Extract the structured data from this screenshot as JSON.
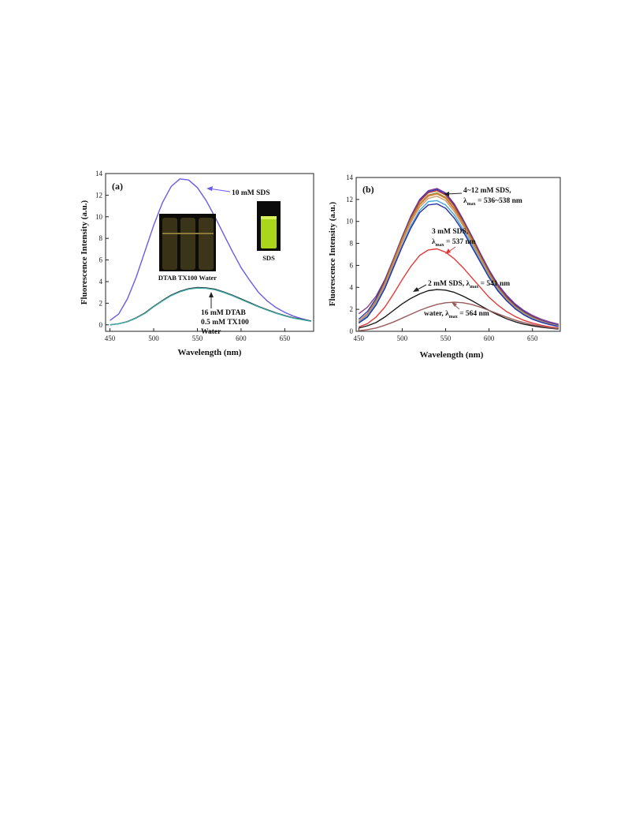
{
  "chart_data": [
    {
      "type": "line",
      "panel_label": "(a)",
      "xlabel": "Wavelength (nm)",
      "ylabel": "Fluorescence Intensity (a.u.)",
      "xlim": [
        445,
        683
      ],
      "ylim": [
        -0.6,
        14
      ],
      "xticks": [
        450,
        500,
        550,
        600,
        650
      ],
      "yticks": [
        0,
        2,
        4,
        6,
        8,
        10,
        12,
        14
      ],
      "series": [
        {
          "color": "#6a5ae8",
          "x": [
            450,
            460,
            470,
            480,
            490,
            500,
            510,
            520,
            530,
            540,
            550,
            560,
            570,
            580,
            590,
            600,
            610,
            620,
            630,
            640,
            650,
            660,
            670,
            680
          ],
          "y": [
            0.4,
            1.0,
            2.4,
            4.4,
            6.8,
            9.2,
            11.3,
            12.8,
            13.5,
            13.4,
            12.7,
            11.5,
            10.0,
            8.4,
            6.8,
            5.3,
            4.1,
            3.0,
            2.2,
            1.6,
            1.15,
            0.8,
            0.55,
            0.35
          ]
        },
        {
          "color": "#1f2a33",
          "x": [
            450,
            460,
            470,
            480,
            490,
            500,
            510,
            520,
            530,
            540,
            550,
            560,
            570,
            580,
            590,
            600,
            610,
            620,
            630,
            640,
            650,
            660,
            670,
            680
          ],
          "y": [
            0.0,
            0.1,
            0.3,
            0.65,
            1.1,
            1.7,
            2.25,
            2.75,
            3.1,
            3.35,
            3.45,
            3.42,
            3.3,
            3.05,
            2.75,
            2.4,
            2.05,
            1.7,
            1.4,
            1.1,
            0.85,
            0.65,
            0.5,
            0.35
          ]
        },
        {
          "color": "#3fa8a3",
          "x": [
            450,
            460,
            470,
            480,
            490,
            500,
            510,
            520,
            530,
            540,
            550,
            560,
            570,
            580,
            590,
            600,
            610,
            620,
            630,
            640,
            650,
            660,
            670,
            680
          ],
          "y": [
            0.0,
            0.1,
            0.28,
            0.62,
            1.06,
            1.66,
            2.2,
            2.7,
            3.05,
            3.3,
            3.4,
            3.37,
            3.25,
            3.0,
            2.7,
            2.35,
            2.0,
            1.66,
            1.36,
            1.07,
            0.82,
            0.62,
            0.47,
            0.33
          ]
        }
      ],
      "annotations": {
        "sds": "10 mM SDS",
        "dtab": "16 mM DTAB",
        "tx100": "0.5 mM TX100",
        "water": "Water",
        "inset_left_caption": "DTAB TX100 Water",
        "inset_right_caption": "SDS"
      }
    },
    {
      "type": "line",
      "panel_label": "(b)",
      "xlabel": "Wavelength (nm)",
      "ylabel": "Fluorescence Intensity (a.u.)",
      "xlim": [
        447,
        682
      ],
      "ylim": [
        0,
        14
      ],
      "xticks": [
        450,
        500,
        550,
        600,
        650
      ],
      "yticks": [
        0,
        2,
        4,
        6,
        8,
        10,
        12,
        14
      ],
      "series": [
        {
          "color": "#8a3b8e",
          "x": [
            450,
            460,
            470,
            480,
            490,
            500,
            510,
            520,
            530,
            540,
            550,
            560,
            570,
            580,
            590,
            600,
            610,
            620,
            630,
            640,
            650,
            660,
            670,
            680
          ],
          "y": [
            1.6,
            2.2,
            3.2,
            4.7,
            6.6,
            8.6,
            10.5,
            12.0,
            12.8,
            13.0,
            12.6,
            11.6,
            10.2,
            8.7,
            7.1,
            5.6,
            4.3,
            3.3,
            2.5,
            1.9,
            1.45,
            1.1,
            0.85,
            0.65
          ]
        },
        {
          "color": "#2b3dbf",
          "x": [
            450,
            460,
            470,
            480,
            490,
            500,
            510,
            520,
            530,
            540,
            550,
            560,
            570,
            580,
            590,
            600,
            610,
            620,
            630,
            640,
            650,
            660,
            670,
            680
          ],
          "y": [
            1.1,
            1.8,
            3.0,
            4.6,
            6.6,
            8.6,
            10.4,
            11.9,
            12.7,
            12.9,
            12.5,
            11.5,
            10.1,
            8.6,
            7.0,
            5.5,
            4.2,
            3.2,
            2.4,
            1.8,
            1.35,
            1.0,
            0.75,
            0.55
          ]
        },
        {
          "color": "#c8392f",
          "x": [
            450,
            460,
            470,
            480,
            490,
            500,
            510,
            520,
            530,
            540,
            550,
            560,
            570,
            580,
            590,
            600,
            610,
            620,
            630,
            640,
            650,
            660,
            670,
            680
          ],
          "y": [
            0.9,
            1.6,
            2.8,
            4.5,
            6.5,
            8.5,
            10.3,
            11.8,
            12.6,
            12.8,
            12.4,
            11.4,
            10.0,
            8.5,
            6.9,
            5.4,
            4.1,
            3.1,
            2.3,
            1.7,
            1.3,
            0.95,
            0.7,
            0.5
          ]
        },
        {
          "color": "#8f8f2a",
          "x": [
            450,
            460,
            470,
            480,
            490,
            500,
            510,
            520,
            530,
            540,
            550,
            560,
            570,
            580,
            590,
            600,
            610,
            620,
            630,
            640,
            650,
            660,
            670,
            680
          ],
          "y": [
            0.9,
            1.6,
            2.8,
            4.4,
            6.4,
            8.4,
            10.2,
            11.6,
            12.4,
            12.6,
            12.2,
            11.2,
            9.9,
            8.4,
            6.8,
            5.3,
            4.0,
            3.0,
            2.25,
            1.7,
            1.25,
            0.92,
            0.68,
            0.5
          ]
        },
        {
          "color": "#e07a33",
          "x": [
            450,
            460,
            470,
            480,
            490,
            500,
            510,
            520,
            530,
            540,
            550,
            560,
            570,
            580,
            590,
            600,
            610,
            620,
            630,
            640,
            650,
            660,
            670,
            680
          ],
          "y": [
            0.9,
            1.6,
            2.7,
            4.3,
            6.3,
            8.3,
            10.1,
            11.5,
            12.3,
            12.5,
            12.1,
            11.1,
            9.8,
            8.3,
            6.7,
            5.2,
            3.95,
            2.95,
            2.2,
            1.65,
            1.22,
            0.9,
            0.66,
            0.48
          ]
        },
        {
          "color": "#c99a6b",
          "x": [
            450,
            460,
            470,
            480,
            490,
            500,
            510,
            520,
            530,
            540,
            550,
            560,
            570,
            580,
            590,
            600,
            610,
            620,
            630,
            640,
            650,
            660,
            670,
            680
          ],
          "y": [
            0.85,
            1.5,
            2.6,
            4.2,
            6.1,
            8.1,
            9.9,
            11.3,
            12.1,
            12.3,
            11.9,
            10.9,
            9.6,
            8.1,
            6.6,
            5.1,
            3.9,
            2.9,
            2.15,
            1.6,
            1.2,
            0.88,
            0.65,
            0.47
          ]
        },
        {
          "color": "#40a6d8",
          "x": [
            450,
            460,
            470,
            480,
            490,
            500,
            510,
            520,
            530,
            540,
            550,
            560,
            570,
            580,
            590,
            600,
            610,
            620,
            630,
            640,
            650,
            660,
            670,
            680
          ],
          "y": [
            0.8,
            1.4,
            2.5,
            4.0,
            5.9,
            7.8,
            9.6,
            11.0,
            11.8,
            11.9,
            11.5,
            10.6,
            9.3,
            7.9,
            6.4,
            5.0,
            3.8,
            2.85,
            2.1,
            1.55,
            1.15,
            0.85,
            0.62,
            0.45
          ]
        },
        {
          "color": "#2a2fa8",
          "x": [
            450,
            460,
            470,
            480,
            490,
            500,
            510,
            520,
            530,
            540,
            550,
            560,
            570,
            580,
            590,
            600,
            610,
            620,
            630,
            640,
            650,
            660,
            670,
            680
          ],
          "y": [
            0.75,
            1.3,
            2.4,
            3.9,
            5.8,
            7.7,
            9.4,
            10.8,
            11.5,
            11.6,
            11.2,
            10.3,
            9.1,
            7.7,
            6.3,
            4.9,
            3.7,
            2.8,
            2.05,
            1.5,
            1.1,
            0.82,
            0.6,
            0.43
          ]
        },
        {
          "color": "#e23a3a",
          "x": [
            450,
            460,
            470,
            480,
            490,
            500,
            510,
            520,
            530,
            540,
            550,
            560,
            570,
            580,
            590,
            600,
            610,
            620,
            630,
            640,
            650,
            660,
            670,
            680
          ],
          "y": [
            0.4,
            0.7,
            1.3,
            2.2,
            3.4,
            4.7,
            5.9,
            6.9,
            7.4,
            7.5,
            7.2,
            6.6,
            5.8,
            4.9,
            4.0,
            3.1,
            2.4,
            1.8,
            1.35,
            1.0,
            0.75,
            0.55,
            0.4,
            0.3
          ]
        },
        {
          "color": "#1a1a1a",
          "x": [
            450,
            460,
            470,
            480,
            490,
            500,
            510,
            520,
            530,
            540,
            550,
            560,
            570,
            580,
            590,
            600,
            610,
            620,
            630,
            640,
            650,
            660,
            670,
            680
          ],
          "y": [
            0.3,
            0.5,
            0.8,
            1.3,
            1.9,
            2.5,
            3.0,
            3.4,
            3.7,
            3.8,
            3.75,
            3.55,
            3.2,
            2.8,
            2.35,
            1.9,
            1.5,
            1.15,
            0.87,
            0.65,
            0.5,
            0.37,
            0.28,
            0.2
          ]
        },
        {
          "color": "#9a5a5a",
          "x": [
            450,
            460,
            470,
            480,
            490,
            500,
            510,
            520,
            530,
            540,
            550,
            560,
            570,
            580,
            590,
            600,
            610,
            620,
            630,
            640,
            650,
            660,
            670,
            680
          ],
          "y": [
            0.05,
            0.15,
            0.3,
            0.55,
            0.85,
            1.2,
            1.55,
            1.9,
            2.2,
            2.45,
            2.6,
            2.65,
            2.6,
            2.45,
            2.2,
            1.9,
            1.6,
            1.3,
            1.02,
            0.8,
            0.6,
            0.45,
            0.33,
            0.25
          ]
        }
      ],
      "annotations": {
        "sds_range": "4~12 mM SDS,",
        "sds_range_lambda": "λ",
        "sds_range_sub": "max",
        "sds_range_value": " = 536~538 nm",
        "sds3": "3 mM SDS,",
        "sds3_lambda": "λ",
        "sds3_sub": "max",
        "sds3_value": " = 537 nm",
        "sds2": "2 mM SDS, λ",
        "sds2_sub": "max",
        "sds2_value": " = 541 nm",
        "water": "water, λ",
        "water_sub": "max",
        "water_value": " = 564 nm"
      }
    }
  ]
}
